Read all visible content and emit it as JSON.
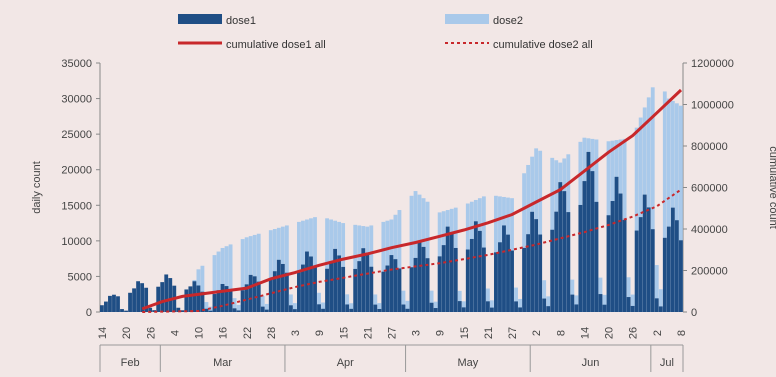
{
  "chart_data": {
    "type": "bar",
    "left_axis": {
      "label": "daily count",
      "min": 0,
      "max": 35000,
      "ticks": [
        0,
        5000,
        10000,
        15000,
        20000,
        25000,
        30000,
        35000
      ]
    },
    "right_axis": {
      "label": "cumulative count",
      "min": 0,
      "max": 1200000,
      "ticks": [
        0,
        200000,
        400000,
        600000,
        800000,
        1000000,
        1200000
      ]
    },
    "x_axis": {
      "date_ticks": [
        "14",
        "20",
        "26",
        "4",
        "10",
        "16",
        "22",
        "28",
        "3",
        "9",
        "15",
        "21",
        "27",
        "3",
        "9",
        "15",
        "21",
        "27",
        "2",
        "8",
        "14",
        "20",
        "26",
        "2",
        "8"
      ],
      "months": [
        "Feb",
        "Mar",
        "Apr",
        "May",
        "Jun",
        "Jul"
      ]
    },
    "legend": [
      {
        "name": "dose1",
        "color": "#1f4e85",
        "style": "bar"
      },
      {
        "name": "dose2",
        "color": "#a9c9ea",
        "style": "bar"
      },
      {
        "name": "cumulative dose1 all",
        "color": "#c8282b",
        "style": "line"
      },
      {
        "name": "cumulative dose2 all",
        "color": "#c8282b",
        "style": "dotted"
      }
    ],
    "legend_position": "top",
    "grid": false,
    "series_colors": {
      "dose1": "#1f4e85",
      "dose2": "#a9c9ea",
      "cumulative": "#c8282b"
    },
    "dose1_weekly_pattern": [
      0.68,
      0.8,
      1.0,
      0.9,
      0.72,
      0.12,
      0.05
    ],
    "dose1_anchors": [
      {
        "day": 0,
        "value": 1400
      },
      {
        "day": 3,
        "value": 2700
      },
      {
        "day": 6,
        "value": 3800
      },
      {
        "day": 10,
        "value": 4500
      },
      {
        "day": 13,
        "value": 5200
      },
      {
        "day": 17,
        "value": 5300
      },
      {
        "day": 22,
        "value": 4500
      },
      {
        "day": 27,
        "value": 3600
      },
      {
        "day": 35,
        "value": 4500
      },
      {
        "day": 42,
        "value": 7000
      },
      {
        "day": 48,
        "value": 8000
      },
      {
        "day": 54,
        "value": 9000
      },
      {
        "day": 60,
        "value": 8800
      },
      {
        "day": 66,
        "value": 9000
      },
      {
        "day": 72,
        "value": 8000
      },
      {
        "day": 78,
        "value": 9500
      },
      {
        "day": 84,
        "value": 11500
      },
      {
        "day": 90,
        "value": 13000
      },
      {
        "day": 96,
        "value": 12500
      },
      {
        "day": 102,
        "value": 12000
      },
      {
        "day": 108,
        "value": 14500
      },
      {
        "day": 112,
        "value": 17000
      },
      {
        "day": 116,
        "value": 19500
      },
      {
        "day": 120,
        "value": 23000
      },
      {
        "day": 126,
        "value": 20000
      },
      {
        "day": 132,
        "value": 17000
      },
      {
        "day": 138,
        "value": 16000
      },
      {
        "day": 141,
        "value": 15000
      },
      {
        "day": 144,
        "value": 14000
      }
    ],
    "dose2_anchors": [
      {
        "day": 0,
        "value": 0
      },
      {
        "day": 20,
        "value": 0
      },
      {
        "day": 24,
        "value": 6000
      },
      {
        "day": 30,
        "value": 9000
      },
      {
        "day": 36,
        "value": 10500
      },
      {
        "day": 42,
        "value": 11500
      },
      {
        "day": 48,
        "value": 12500
      },
      {
        "day": 54,
        "value": 13500
      },
      {
        "day": 60,
        "value": 12500
      },
      {
        "day": 66,
        "value": 12000
      },
      {
        "day": 72,
        "value": 13000
      },
      {
        "day": 78,
        "value": 17000
      },
      {
        "day": 84,
        "value": 14000
      },
      {
        "day": 90,
        "value": 15000
      },
      {
        "day": 96,
        "value": 16500
      },
      {
        "day": 102,
        "value": 16000
      },
      {
        "day": 108,
        "value": 23000
      },
      {
        "day": 114,
        "value": 21000
      },
      {
        "day": 120,
        "value": 24500
      },
      {
        "day": 126,
        "value": 24000
      },
      {
        "day": 132,
        "value": 24500
      },
      {
        "day": 138,
        "value": 33000
      },
      {
        "day": 141,
        "value": 30000
      },
      {
        "day": 144,
        "value": 29000
      }
    ],
    "cumulative_dose1_anchors": [
      {
        "day": 10,
        "value": 15000
      },
      {
        "day": 15,
        "value": 50000
      },
      {
        "day": 20,
        "value": 75000
      },
      {
        "day": 28,
        "value": 95000
      },
      {
        "day": 36,
        "value": 115000
      },
      {
        "day": 42,
        "value": 160000
      },
      {
        "day": 48,
        "value": 190000
      },
      {
        "day": 54,
        "value": 225000
      },
      {
        "day": 60,
        "value": 255000
      },
      {
        "day": 66,
        "value": 280000
      },
      {
        "day": 72,
        "value": 310000
      },
      {
        "day": 78,
        "value": 335000
      },
      {
        "day": 84,
        "value": 365000
      },
      {
        "day": 90,
        "value": 395000
      },
      {
        "day": 96,
        "value": 430000
      },
      {
        "day": 102,
        "value": 470000
      },
      {
        "day": 108,
        "value": 530000
      },
      {
        "day": 114,
        "value": 590000
      },
      {
        "day": 120,
        "value": 680000
      },
      {
        "day": 126,
        "value": 770000
      },
      {
        "day": 132,
        "value": 850000
      },
      {
        "day": 138,
        "value": 960000
      },
      {
        "day": 144,
        "value": 1070000
      }
    ],
    "cumulative_dose2_anchors": [
      {
        "day": 10,
        "value": 0
      },
      {
        "day": 24,
        "value": 5000
      },
      {
        "day": 30,
        "value": 30000
      },
      {
        "day": 36,
        "value": 60000
      },
      {
        "day": 42,
        "value": 90000
      },
      {
        "day": 48,
        "value": 120000
      },
      {
        "day": 54,
        "value": 145000
      },
      {
        "day": 60,
        "value": 165000
      },
      {
        "day": 66,
        "value": 185000
      },
      {
        "day": 72,
        "value": 205000
      },
      {
        "day": 78,
        "value": 220000
      },
      {
        "day": 84,
        "value": 235000
      },
      {
        "day": 90,
        "value": 255000
      },
      {
        "day": 96,
        "value": 275000
      },
      {
        "day": 102,
        "value": 300000
      },
      {
        "day": 108,
        "value": 325000
      },
      {
        "day": 114,
        "value": 355000
      },
      {
        "day": 120,
        "value": 385000
      },
      {
        "day": 126,
        "value": 420000
      },
      {
        "day": 132,
        "value": 460000
      },
      {
        "day": 138,
        "value": 510000
      },
      {
        "day": 144,
        "value": 590000
      }
    ]
  }
}
